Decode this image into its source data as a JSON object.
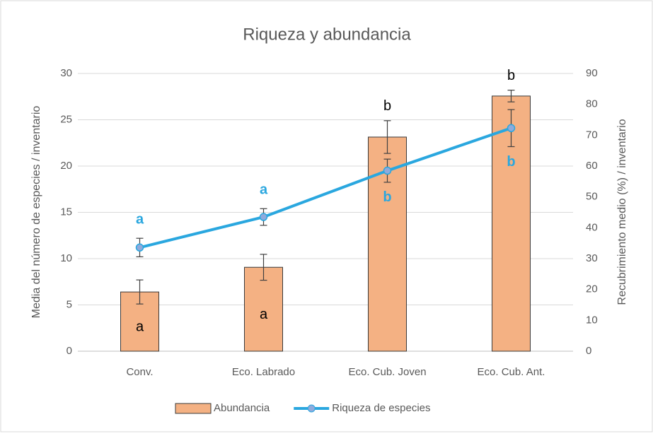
{
  "chart_data": {
    "type": "bar_line",
    "title": "Riqueza y abundancia",
    "ylabel": "Media del número de especies / inventario",
    "y2label": "Recubrimiento medio (%) / inventario",
    "categories": [
      "Conv.",
      "Eco. Labrado",
      "Eco. Cub. Joven",
      "Eco. Cub. Ant."
    ],
    "ylim": [
      0,
      30
    ],
    "yticks": [
      0,
      5,
      10,
      15,
      20,
      25,
      30
    ],
    "y2lim": [
      0,
      90
    ],
    "y2ticks": [
      0,
      10,
      20,
      30,
      40,
      50,
      60,
      70,
      80,
      90
    ],
    "grid": true,
    "legend": "bottom",
    "series": [
      {
        "name": "Abundancia",
        "type": "bar",
        "axis": "y2",
        "color": "#f4b183",
        "values": [
          19.2,
          27.2,
          69.4,
          82.7
        ],
        "errors": [
          3.9,
          4.2,
          5.3,
          1.9
        ],
        "letters": [
          "a",
          "a",
          "b",
          "b"
        ]
      },
      {
        "name": "Riqueza de especies",
        "type": "line",
        "axis": "y",
        "color": "#2aa7df",
        "values": [
          11.2,
          14.5,
          19.5,
          24.1
        ],
        "errors": [
          1.0,
          0.9,
          1.25,
          2.0
        ],
        "letters": [
          "a",
          "a",
          "b",
          "b"
        ]
      }
    ]
  }
}
